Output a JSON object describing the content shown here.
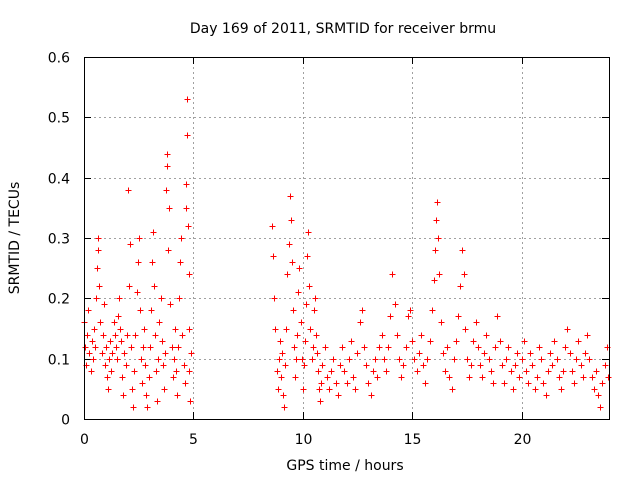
{
  "chart_data": {
    "type": "scatter",
    "title": "Day 169 of 2011, SRMTID for receiver brmu",
    "xlabel": "GPS time / hours",
    "ylabel": "SRMTID / TECUs",
    "xlim": [
      0,
      24
    ],
    "ylim": [
      0,
      0.6
    ],
    "xticks": [
      0,
      5,
      10,
      15,
      20
    ],
    "xtick_labels": [
      "0",
      "5",
      "10",
      "15",
      "20"
    ],
    "yticks": [
      0,
      0.1,
      0.2,
      0.3,
      0.4,
      0.5,
      0.6
    ],
    "ytick_labels": [
      "0",
      "0.1",
      "0.2",
      "0.3",
      "0.4",
      "0.5",
      "0.6"
    ],
    "grid": true,
    "marker": "+",
    "marker_color": "#ff0000",
    "series": [
      {
        "name": "SRMTID",
        "points": [
          [
            0.0,
            0.16
          ],
          [
            0.05,
            0.12
          ],
          [
            0.1,
            0.09
          ],
          [
            0.15,
            0.14
          ],
          [
            0.2,
            0.18
          ],
          [
            0.25,
            0.11
          ],
          [
            0.3,
            0.08
          ],
          [
            0.35,
            0.13
          ],
          [
            0.4,
            0.1
          ],
          [
            0.45,
            0.15
          ],
          [
            0.5,
            0.12
          ],
          [
            0.55,
            0.2
          ],
          [
            0.6,
            0.25
          ],
          [
            0.62,
            0.28
          ],
          [
            0.65,
            0.3
          ],
          [
            0.7,
            0.22
          ],
          [
            0.75,
            0.16
          ],
          [
            0.8,
            0.11
          ],
          [
            0.85,
            0.14
          ],
          [
            0.9,
            0.19
          ],
          [
            0.95,
            0.09
          ],
          [
            1.0,
            0.12
          ],
          [
            1.05,
            0.07
          ],
          [
            1.1,
            0.05
          ],
          [
            1.15,
            0.1
          ],
          [
            1.2,
            0.13
          ],
          [
            1.25,
            0.08
          ],
          [
            1.3,
            0.11
          ],
          [
            1.35,
            0.16
          ],
          [
            1.4,
            0.14
          ],
          [
            1.45,
            0.12
          ],
          [
            1.5,
            0.1
          ],
          [
            1.55,
            0.17
          ],
          [
            1.6,
            0.2
          ],
          [
            1.65,
            0.15
          ],
          [
            1.7,
            0.13
          ],
          [
            1.75,
            0.07
          ],
          [
            1.8,
            0.04
          ],
          [
            1.85,
            0.11
          ],
          [
            1.9,
            0.09
          ],
          [
            1.95,
            0.14
          ],
          [
            2.0,
            0.38
          ],
          [
            2.02,
            0.38
          ],
          [
            2.05,
            0.22
          ],
          [
            2.1,
            0.29
          ],
          [
            2.15,
            0.12
          ],
          [
            2.2,
            0.05
          ],
          [
            2.25,
            0.02
          ],
          [
            2.3,
            0.08
          ],
          [
            2.35,
            0.14
          ],
          [
            2.4,
            0.21
          ],
          [
            2.45,
            0.26
          ],
          [
            2.5,
            0.3
          ],
          [
            2.55,
            0.18
          ],
          [
            2.6,
            0.1
          ],
          [
            2.65,
            0.06
          ],
          [
            2.7,
            0.12
          ],
          [
            2.75,
            0.15
          ],
          [
            2.8,
            0.09
          ],
          [
            2.85,
            0.04
          ],
          [
            2.9,
            0.02
          ],
          [
            2.95,
            0.07
          ],
          [
            3.0,
            0.12
          ],
          [
            3.05,
            0.18
          ],
          [
            3.1,
            0.26
          ],
          [
            3.15,
            0.31
          ],
          [
            3.2,
            0.22
          ],
          [
            3.25,
            0.14
          ],
          [
            3.3,
            0.08
          ],
          [
            3.35,
            0.03
          ],
          [
            3.4,
            0.1
          ],
          [
            3.45,
            0.16
          ],
          [
            3.5,
            0.2
          ],
          [
            3.55,
            0.13
          ],
          [
            3.6,
            0.09
          ],
          [
            3.65,
            0.05
          ],
          [
            3.7,
            0.11
          ],
          [
            3.75,
            0.38
          ],
          [
            3.78,
            0.44
          ],
          [
            3.8,
            0.42
          ],
          [
            3.85,
            0.28
          ],
          [
            3.9,
            0.35
          ],
          [
            3.95,
            0.19
          ],
          [
            4.0,
            0.12
          ],
          [
            4.05,
            0.07
          ],
          [
            4.1,
            0.1
          ],
          [
            4.15,
            0.15
          ],
          [
            4.2,
            0.08
          ],
          [
            4.25,
            0.04
          ],
          [
            4.3,
            0.12
          ],
          [
            4.35,
            0.2
          ],
          [
            4.4,
            0.26
          ],
          [
            4.45,
            0.3
          ],
          [
            4.5,
            0.14
          ],
          [
            4.55,
            0.09
          ],
          [
            4.6,
            0.06
          ],
          [
            4.65,
            0.35
          ],
          [
            4.68,
            0.39
          ],
          [
            4.7,
            0.53
          ],
          [
            4.72,
            0.47
          ],
          [
            4.75,
            0.32
          ],
          [
            4.78,
            0.24
          ],
          [
            4.8,
            0.15
          ],
          [
            4.82,
            0.08
          ],
          [
            4.85,
            0.03
          ],
          [
            4.88,
            0.11
          ],
          [
            8.6,
            0.32
          ],
          [
            8.65,
            0.27
          ],
          [
            8.7,
            0.2
          ],
          [
            8.75,
            0.15
          ],
          [
            8.8,
            0.08
          ],
          [
            8.85,
            0.05
          ],
          [
            8.9,
            0.1
          ],
          [
            8.95,
            0.13
          ],
          [
            9.0,
            0.07
          ],
          [
            9.05,
            0.11
          ],
          [
            9.1,
            0.04
          ],
          [
            9.15,
            0.02
          ],
          [
            9.2,
            0.09
          ],
          [
            9.25,
            0.15
          ],
          [
            9.3,
            0.24
          ],
          [
            9.35,
            0.29
          ],
          [
            9.4,
            0.37
          ],
          [
            9.45,
            0.33
          ],
          [
            9.5,
            0.26
          ],
          [
            9.55,
            0.18
          ],
          [
            9.6,
            0.12
          ],
          [
            9.65,
            0.07
          ],
          [
            9.7,
            0.1
          ],
          [
            9.75,
            0.14
          ],
          [
            9.8,
            0.21
          ],
          [
            9.85,
            0.25
          ],
          [
            9.9,
            0.16
          ],
          [
            9.95,
            0.1
          ],
          [
            10.0,
            0.05
          ],
          [
            10.05,
            0.09
          ],
          [
            10.1,
            0.13
          ],
          [
            10.15,
            0.19
          ],
          [
            10.2,
            0.27
          ],
          [
            10.25,
            0.31
          ],
          [
            10.3,
            0.22
          ],
          [
            10.35,
            0.15
          ],
          [
            10.4,
            0.1
          ],
          [
            10.45,
            0.12
          ],
          [
            10.5,
            0.18
          ],
          [
            10.55,
            0.2
          ],
          [
            10.6,
            0.14
          ],
          [
            10.65,
            0.11
          ],
          [
            10.7,
            0.08
          ],
          [
            10.75,
            0.05
          ],
          [
            10.8,
            0.03
          ],
          [
            10.85,
            0.06
          ],
          [
            10.9,
            0.09
          ],
          [
            11.0,
            0.12
          ],
          [
            11.1,
            0.07
          ],
          [
            11.2,
            0.05
          ],
          [
            11.3,
            0.08
          ],
          [
            11.4,
            0.1
          ],
          [
            11.5,
            0.06
          ],
          [
            11.6,
            0.04
          ],
          [
            11.7,
            0.09
          ],
          [
            11.8,
            0.12
          ],
          [
            11.9,
            0.08
          ],
          [
            12.0,
            0.06
          ],
          [
            12.1,
            0.1
          ],
          [
            12.2,
            0.13
          ],
          [
            12.3,
            0.07
          ],
          [
            12.4,
            0.05
          ],
          [
            12.5,
            0.11
          ],
          [
            12.6,
            0.16
          ],
          [
            12.7,
            0.18
          ],
          [
            12.8,
            0.12
          ],
          [
            12.9,
            0.09
          ],
          [
            13.0,
            0.06
          ],
          [
            13.1,
            0.04
          ],
          [
            13.2,
            0.08
          ],
          [
            13.3,
            0.1
          ],
          [
            13.4,
            0.07
          ],
          [
            13.5,
            0.12
          ],
          [
            13.6,
            0.14
          ],
          [
            13.7,
            0.1
          ],
          [
            13.8,
            0.08
          ],
          [
            13.9,
            0.12
          ],
          [
            14.0,
            0.17
          ],
          [
            14.1,
            0.24
          ],
          [
            14.2,
            0.19
          ],
          [
            14.3,
            0.14
          ],
          [
            14.4,
            0.1
          ],
          [
            14.5,
            0.07
          ],
          [
            14.6,
            0.09
          ],
          [
            14.7,
            0.12
          ],
          [
            14.8,
            0.17
          ],
          [
            14.9,
            0.18
          ],
          [
            15.0,
            0.13
          ],
          [
            15.1,
            0.1
          ],
          [
            15.2,
            0.08
          ],
          [
            15.3,
            0.11
          ],
          [
            15.4,
            0.14
          ],
          [
            15.5,
            0.09
          ],
          [
            15.6,
            0.06
          ],
          [
            15.7,
            0.1
          ],
          [
            15.8,
            0.13
          ],
          [
            15.9,
            0.18
          ],
          [
            16.0,
            0.23
          ],
          [
            16.05,
            0.28
          ],
          [
            16.1,
            0.33
          ],
          [
            16.15,
            0.36
          ],
          [
            16.2,
            0.3
          ],
          [
            16.25,
            0.24
          ],
          [
            16.3,
            0.16
          ],
          [
            16.4,
            0.11
          ],
          [
            16.5,
            0.08
          ],
          [
            16.6,
            0.12
          ],
          [
            16.7,
            0.07
          ],
          [
            16.8,
            0.05
          ],
          [
            16.9,
            0.1
          ],
          [
            17.0,
            0.13
          ],
          [
            17.1,
            0.17
          ],
          [
            17.2,
            0.22
          ],
          [
            17.3,
            0.28
          ],
          [
            17.35,
            0.24
          ],
          [
            17.4,
            0.15
          ],
          [
            17.5,
            0.1
          ],
          [
            17.6,
            0.07
          ],
          [
            17.7,
            0.09
          ],
          [
            17.8,
            0.13
          ],
          [
            17.9,
            0.16
          ],
          [
            18.0,
            0.12
          ],
          [
            18.1,
            0.09
          ],
          [
            18.2,
            0.07
          ],
          [
            18.3,
            0.11
          ],
          [
            18.4,
            0.14
          ],
          [
            18.5,
            0.1
          ],
          [
            18.6,
            0.08
          ],
          [
            18.7,
            0.06
          ],
          [
            18.8,
            0.12
          ],
          [
            18.9,
            0.17
          ],
          [
            19.0,
            0.13
          ],
          [
            19.1,
            0.09
          ],
          [
            19.2,
            0.06
          ],
          [
            19.3,
            0.1
          ],
          [
            19.4,
            0.12
          ],
          [
            19.5,
            0.08
          ],
          [
            19.6,
            0.05
          ],
          [
            19.7,
            0.09
          ],
          [
            19.8,
            0.11
          ],
          [
            19.9,
            0.07
          ],
          [
            20.0,
            0.1
          ],
          [
            20.1,
            0.13
          ],
          [
            20.2,
            0.08
          ],
          [
            20.3,
            0.06
          ],
          [
            20.4,
            0.11
          ],
          [
            20.5,
            0.09
          ],
          [
            20.6,
            0.05
          ],
          [
            20.7,
            0.07
          ],
          [
            20.8,
            0.12
          ],
          [
            20.9,
            0.1
          ],
          [
            21.0,
            0.06
          ],
          [
            21.1,
            0.04
          ],
          [
            21.2,
            0.08
          ],
          [
            21.3,
            0.11
          ],
          [
            21.4,
            0.09
          ],
          [
            21.5,
            0.13
          ],
          [
            21.6,
            0.1
          ],
          [
            21.7,
            0.07
          ],
          [
            21.8,
            0.05
          ],
          [
            21.9,
            0.08
          ],
          [
            22.0,
            0.12
          ],
          [
            22.1,
            0.15
          ],
          [
            22.2,
            0.11
          ],
          [
            22.3,
            0.08
          ],
          [
            22.4,
            0.06
          ],
          [
            22.5,
            0.1
          ],
          [
            22.6,
            0.13
          ],
          [
            22.7,
            0.09
          ],
          [
            22.8,
            0.07
          ],
          [
            22.9,
            0.11
          ],
          [
            23.0,
            0.14
          ],
          [
            23.1,
            0.1
          ],
          [
            23.2,
            0.07
          ],
          [
            23.3,
            0.05
          ],
          [
            23.4,
            0.08
          ],
          [
            23.5,
            0.04
          ],
          [
            23.6,
            0.02
          ],
          [
            23.7,
            0.06
          ],
          [
            23.8,
            0.09
          ],
          [
            23.9,
            0.12
          ],
          [
            23.95,
            0.07
          ]
        ]
      }
    ]
  }
}
